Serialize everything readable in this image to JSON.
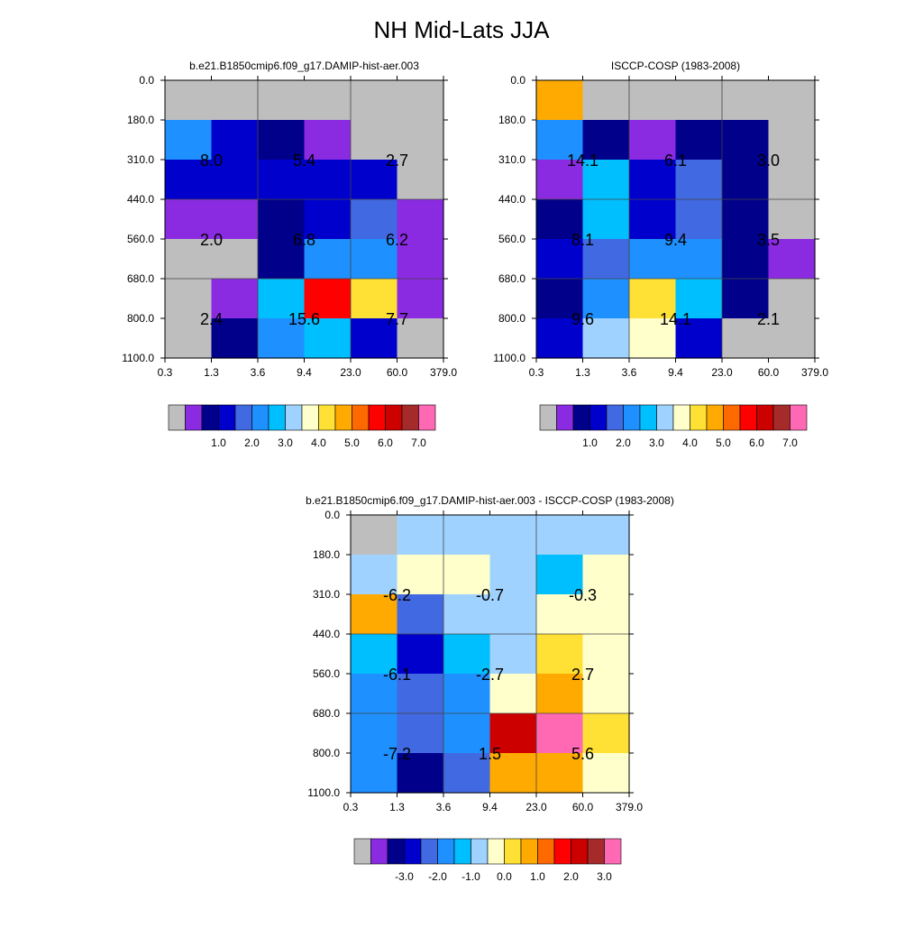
{
  "title": "NH Mid-Lats JJA",
  "colors": {
    "ramp": [
      "#bebebe",
      "#8a2be2",
      "#00008b",
      "#0000cd",
      "#4169e1",
      "#1e90ff",
      "#00bfff",
      "#a0d2ff",
      "#ffffcc",
      "#ffe135",
      "#ffaa00",
      "#ff6a00",
      "#ff0000",
      "#cd0000",
      "#a52a2a",
      "#ff69b4"
    ]
  },
  "chart_data": [
    {
      "type": "heatmap",
      "title": "b.e21.B1850cmip6.f09_g17.DAMIP-hist-aer.003",
      "x_ticks": [
        "0.3",
        "1.3",
        "3.6",
        "9.4",
        "23.0",
        "60.0",
        "379.0"
      ],
      "y_ticks": [
        "0.0",
        "180.0",
        "310.0",
        "440.0",
        "560.0",
        "680.0",
        "800.0",
        "1100.0"
      ],
      "cell_colors": [
        [
          0,
          0,
          0,
          0,
          0,
          0
        ],
        [
          5,
          3,
          2,
          1,
          0,
          0
        ],
        [
          3,
          3,
          3,
          3,
          3,
          0
        ],
        [
          1,
          1,
          2,
          3,
          4,
          1
        ],
        [
          0,
          0,
          2,
          5,
          5,
          1
        ],
        [
          0,
          1,
          6,
          12,
          9,
          1
        ],
        [
          0,
          2,
          5,
          6,
          3,
          0
        ]
      ],
      "annotations": [
        {
          "row": 1,
          "col": 0,
          "text": "8.0"
        },
        {
          "row": 1,
          "col": 2,
          "text": "5.4"
        },
        {
          "row": 1,
          "col": 4,
          "text": "2.7"
        },
        {
          "row": 3,
          "col": 0,
          "text": "2.0"
        },
        {
          "row": 3,
          "col": 2,
          "text": "6.8"
        },
        {
          "row": 3,
          "col": 4,
          "text": "6.2"
        },
        {
          "row": 5,
          "col": 0,
          "text": "2.4"
        },
        {
          "row": 5,
          "col": 2,
          "text": "15.6"
        },
        {
          "row": 5,
          "col": 4,
          "text": "7.7"
        }
      ],
      "colorbar_labels": [
        "1.0",
        "2.0",
        "3.0",
        "4.0",
        "5.0",
        "6.0",
        "7.0"
      ],
      "grid": true
    },
    {
      "type": "heatmap",
      "title": "ISCCP-COSP (1983-2008)",
      "x_ticks": [
        "0.3",
        "1.3",
        "3.6",
        "9.4",
        "23.0",
        "60.0",
        "379.0"
      ],
      "y_ticks": [
        "0.0",
        "180.0",
        "310.0",
        "440.0",
        "560.0",
        "680.0",
        "800.0",
        "1100.0"
      ],
      "cell_colors": [
        [
          10,
          0,
          0,
          0,
          0,
          0
        ],
        [
          5,
          2,
          1,
          2,
          2,
          0
        ],
        [
          1,
          6,
          3,
          4,
          2,
          0
        ],
        [
          2,
          6,
          3,
          4,
          2,
          0
        ],
        [
          3,
          4,
          5,
          5,
          2,
          1
        ],
        [
          2,
          5,
          9,
          6,
          2,
          0
        ],
        [
          3,
          7,
          8,
          3,
          0,
          0
        ]
      ],
      "annotations": [
        {
          "row": 1,
          "col": 0,
          "text": "14.1"
        },
        {
          "row": 1,
          "col": 2,
          "text": "6.1"
        },
        {
          "row": 1,
          "col": 4,
          "text": "3.0"
        },
        {
          "row": 3,
          "col": 0,
          "text": "8.1"
        },
        {
          "row": 3,
          "col": 2,
          "text": "9.4"
        },
        {
          "row": 3,
          "col": 4,
          "text": "3.5"
        },
        {
          "row": 5,
          "col": 0,
          "text": "9.6"
        },
        {
          "row": 5,
          "col": 2,
          "text": "14.1"
        },
        {
          "row": 5,
          "col": 4,
          "text": "2.1"
        }
      ],
      "colorbar_labels": [
        "1.0",
        "2.0",
        "3.0",
        "4.0",
        "5.0",
        "6.0",
        "7.0"
      ],
      "grid": true
    },
    {
      "type": "heatmap",
      "title": "b.e21.B1850cmip6.f09_g17.DAMIP-hist-aer.003 - ISCCP-COSP (1983-2008)",
      "x_ticks": [
        "0.3",
        "1.3",
        "3.6",
        "9.4",
        "23.0",
        "60.0",
        "379.0"
      ],
      "y_ticks": [
        "0.0",
        "180.0",
        "310.0",
        "440.0",
        "560.0",
        "680.0",
        "800.0",
        "1100.0"
      ],
      "cell_colors": [
        [
          0,
          7,
          7,
          7,
          7,
          7
        ],
        [
          7,
          8,
          8,
          7,
          6,
          8
        ],
        [
          10,
          4,
          7,
          7,
          8,
          8
        ],
        [
          6,
          3,
          6,
          7,
          9,
          8
        ],
        [
          5,
          4,
          5,
          8,
          10,
          8
        ],
        [
          5,
          4,
          5,
          13,
          15,
          9
        ],
        [
          5,
          2,
          4,
          10,
          10,
          8
        ]
      ],
      "annotations": [
        {
          "row": 1,
          "col": 0,
          "text": "-6.2"
        },
        {
          "row": 1,
          "col": 2,
          "text": "-0.7"
        },
        {
          "row": 1,
          "col": 4,
          "text": "-0.3"
        },
        {
          "row": 3,
          "col": 0,
          "text": "-6.1"
        },
        {
          "row": 3,
          "col": 2,
          "text": "-2.7"
        },
        {
          "row": 3,
          "col": 4,
          "text": "2.7"
        },
        {
          "row": 5,
          "col": 0,
          "text": "-7.2"
        },
        {
          "row": 5,
          "col": 2,
          "text": "1.5"
        },
        {
          "row": 5,
          "col": 4,
          "text": "5.6"
        }
      ],
      "colorbar_labels": [
        "-3.0",
        "-2.0",
        "-1.0",
        "0.0",
        "1.0",
        "2.0",
        "3.0"
      ],
      "grid": true
    }
  ]
}
